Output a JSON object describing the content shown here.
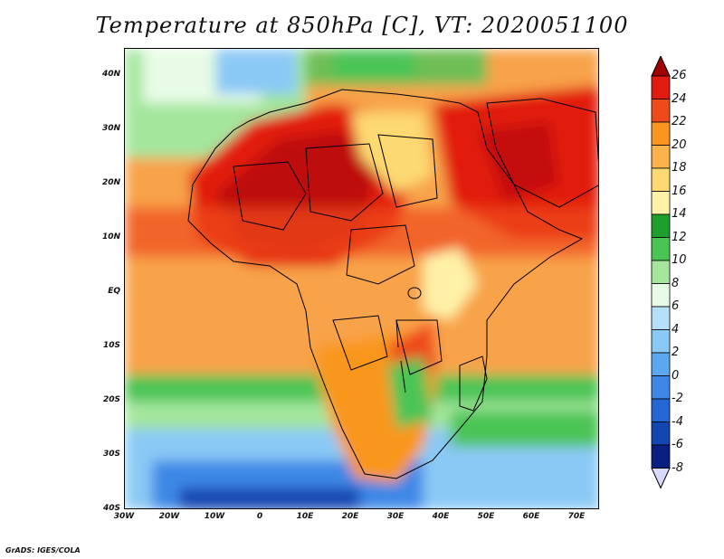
{
  "title": "Temperature at 850hPa [C], VT: 2020051100",
  "credit": "GrADS: IGES/COLA",
  "map": {
    "lat_labels": [
      "40N",
      "30N",
      "20N",
      "10N",
      "EQ",
      "10S",
      "20S",
      "30S",
      "40S"
    ],
    "lon_labels": [
      "30W",
      "20W",
      "10W",
      "0",
      "10E",
      "20E",
      "30E",
      "40E",
      "50E",
      "60E",
      "70E"
    ],
    "lon_range": [
      -30,
      75
    ],
    "lat_range": [
      -40,
      45
    ]
  },
  "colorbar": {
    "labels": [
      "26",
      "24",
      "22",
      "20",
      "18",
      "16",
      "14",
      "12",
      "10",
      "8",
      "6",
      "4",
      "2",
      "0",
      "-2",
      "-4",
      "-6",
      "-8"
    ],
    "colors": [
      "#a00000",
      "#e21b10",
      "#f04a1b",
      "#f9961f",
      "#fbb34a",
      "#fdd971",
      "#fff2a8",
      "#1e9e2c",
      "#4bc456",
      "#a3e69c",
      "#e8fbe6",
      "#b6e0f9",
      "#8ac9f5",
      "#5ba8ef",
      "#3d88e6",
      "#2466d4",
      "#1446b2",
      "#0a2080",
      "#d9d9ff"
    ]
  }
}
